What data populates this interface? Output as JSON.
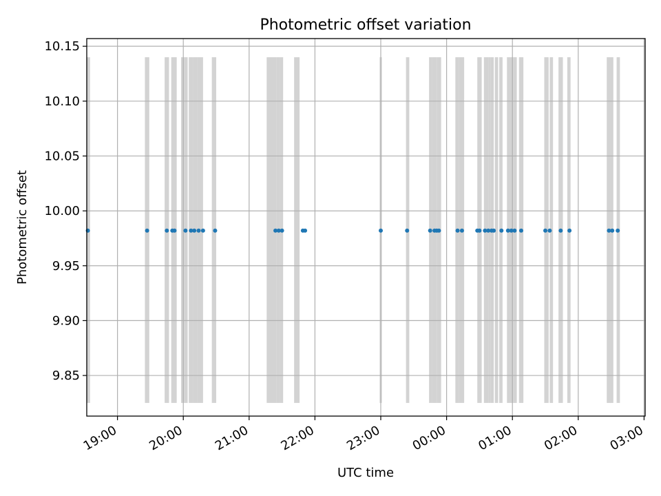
{
  "chart_data": {
    "type": "scatter",
    "title": "Photometric offset variation",
    "xlabel": "UTC time",
    "ylabel": "Photometric offset",
    "xlim": [
      "18:32",
      "03:01"
    ],
    "ylim": [
      9.813,
      10.157
    ],
    "grid": true,
    "y_ticks": [
      9.85,
      9.9,
      9.95,
      10.0,
      10.05,
      10.1,
      10.15
    ],
    "x_ticks": [
      "19:00",
      "20:00",
      "21:00",
      "22:00",
      "23:00",
      "00:00",
      "01:00",
      "02:00",
      "03:00"
    ],
    "series": [
      {
        "color": "#1f77b4",
        "x": [
          "18:33",
          "19:27",
          "19:45",
          "19:50",
          "19:52",
          "20:02",
          "20:07",
          "20:10",
          "20:14",
          "20:18",
          "20:29",
          "21:24",
          "21:27",
          "21:30",
          "21:49",
          "21:51",
          "23:00",
          "23:24",
          "23:45",
          "23:49",
          "23:51",
          "23:53",
          "00:10",
          "00:14",
          "00:28",
          "00:30",
          "00:35",
          "00:38",
          "00:41",
          "00:43",
          "00:50",
          "00:56",
          "00:59",
          "01:02",
          "01:08",
          "01:30",
          "01:34",
          "01:44",
          "01:52",
          "02:28",
          "02:31",
          "02:36"
        ],
        "y": [
          9.982,
          9.982,
          9.982,
          9.982,
          9.982,
          9.982,
          9.982,
          9.982,
          9.982,
          9.982,
          9.982,
          9.982,
          9.982,
          9.982,
          9.982,
          9.982,
          9.982,
          9.982,
          9.982,
          9.982,
          9.982,
          9.982,
          9.982,
          9.982,
          9.982,
          9.982,
          9.982,
          9.982,
          9.982,
          9.982,
          9.982,
          9.982,
          9.982,
          9.982,
          9.982,
          9.982,
          9.982,
          9.982,
          9.982,
          9.982,
          9.982,
          9.982
        ]
      }
    ],
    "shaded_bands": {
      "color": "#d3d3d3",
      "y_range": [
        9.825,
        10.14
      ],
      "intervals": [
        [
          "18:32",
          "18:35"
        ],
        [
          "19:25",
          "19:29"
        ],
        [
          "19:43",
          "19:47"
        ],
        [
          "19:49",
          "19:54"
        ],
        [
          "19:58",
          "20:01"
        ],
        [
          "20:01",
          "20:04"
        ],
        [
          "20:05",
          "20:09"
        ],
        [
          "20:09",
          "20:13"
        ],
        [
          "20:13",
          "20:18"
        ],
        [
          "20:26",
          "20:30"
        ],
        [
          "21:16",
          "21:25"
        ],
        [
          "21:25",
          "21:28"
        ],
        [
          "21:28",
          "21:31"
        ],
        [
          "21:41",
          "21:46"
        ],
        [
          "22:59",
          "23:01"
        ],
        [
          "23:23",
          "23:26"
        ],
        [
          "23:44",
          "23:47"
        ],
        [
          "23:47",
          "23:51"
        ],
        [
          "23:51",
          "23:55"
        ],
        [
          "00:08",
          "00:11"
        ],
        [
          "00:11",
          "00:16"
        ],
        [
          "00:28",
          "00:32"
        ],
        [
          "00:34",
          "00:38"
        ],
        [
          "00:38",
          "00:40"
        ],
        [
          "00:40",
          "00:43"
        ],
        [
          "00:44",
          "00:47"
        ],
        [
          "00:48",
          "00:51"
        ],
        [
          "00:55",
          "00:58"
        ],
        [
          "00:58",
          "01:01"
        ],
        [
          "01:01",
          "01:04"
        ],
        [
          "01:06",
          "01:10"
        ],
        [
          "01:29",
          "01:33"
        ],
        [
          "01:34",
          "01:37"
        ],
        [
          "01:42",
          "01:46"
        ],
        [
          "01:50",
          "01:53"
        ],
        [
          "02:26",
          "02:29"
        ],
        [
          "02:29",
          "02:32"
        ],
        [
          "02:35",
          "02:38"
        ]
      ]
    }
  }
}
